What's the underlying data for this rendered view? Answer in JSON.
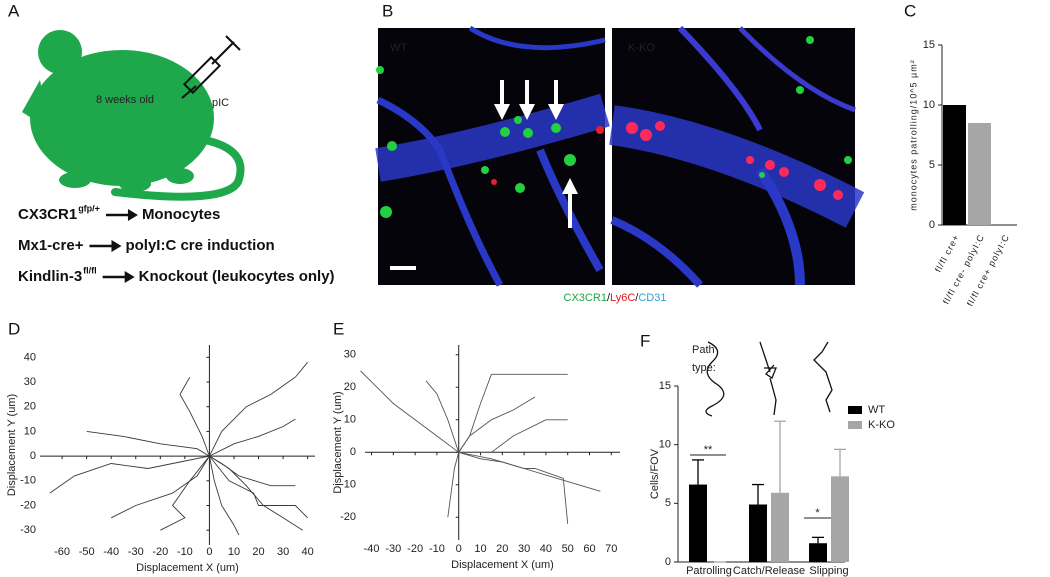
{
  "panel_a": {
    "label": "A",
    "mouse_text": "8 weeks old",
    "injection": "pIC",
    "rows": [
      {
        "gene": "CX3CR1",
        "sup": "gfp/+",
        "effect": "Monocytes"
      },
      {
        "gene": "Mx1-cre+",
        "effect": "polyI:C cre induction"
      },
      {
        "gene": "Kindlin-3",
        "sup": "fl/fl",
        "effect": "Knockout (leukocytes only)"
      }
    ]
  },
  "panel_b": {
    "label": "B",
    "images": [
      "WT",
      "K-KO"
    ],
    "stain": [
      {
        "text": "CX3CR1",
        "color": "#1aa83a"
      },
      {
        "text": "/",
        "color": "#111111"
      },
      {
        "text": "Ly6C",
        "color": "#e8141e"
      },
      {
        "text": "/",
        "color": "#111111"
      },
      {
        "text": "CD31",
        "color": "#29a3d6"
      }
    ]
  },
  "chart_data": [
    {
      "panel": "C",
      "type": "bar",
      "y_label": "monocytes patrolling/10^5 µm²",
      "categories": [
        "fl/fl cre+",
        "fl/fl cre- polyI:C",
        "fl/fl cre+ polyI:C"
      ],
      "values": [
        10,
        8.5,
        0
      ],
      "colors": [
        "#000000",
        "#a6a6a6",
        "#000000"
      ],
      "ylim": [
        0,
        15
      ],
      "yticks": [
        0,
        5,
        10,
        15
      ]
    },
    {
      "panel": "D",
      "type": "trajectory",
      "x_label": "Displacement X (um)",
      "y_label": "Displacement Y (um)",
      "xlim": [
        -69,
        43
      ],
      "ylim": [
        -36,
        45
      ],
      "xticks": [
        -60,
        -50,
        -40,
        -30,
        -20,
        -10,
        0,
        10,
        20,
        30,
        40
      ],
      "yticks": [
        -30,
        -20,
        -10,
        0,
        10,
        20,
        30,
        40
      ],
      "line_color": "#3a3a3a",
      "series": [
        {
          "x": [
            0,
            5,
            15,
            25,
            35,
            40
          ],
          "y": [
            0,
            10,
            20,
            25,
            32,
            38
          ]
        },
        {
          "x": [
            0,
            -10,
            -25,
            -40,
            -55,
            -65
          ],
          "y": [
            0,
            -2,
            -5,
            -3,
            -8,
            -15
          ]
        },
        {
          "x": [
            0,
            8,
            15,
            22,
            30,
            38
          ],
          "y": [
            0,
            -5,
            -12,
            -20,
            -25,
            -30
          ]
        },
        {
          "x": [
            0,
            5,
            12,
            25,
            35
          ],
          "y": [
            0,
            -3,
            -8,
            -12,
            -12
          ]
        },
        {
          "x": [
            0,
            -5,
            -15,
            -30,
            -40
          ],
          "y": [
            0,
            -8,
            -15,
            -20,
            -25
          ]
        },
        {
          "x": [
            0,
            -3,
            -8,
            -12,
            -8
          ],
          "y": [
            0,
            8,
            18,
            25,
            32
          ]
        },
        {
          "x": [
            0,
            10,
            20,
            30,
            35
          ],
          "y": [
            0,
            5,
            8,
            12,
            15
          ]
        },
        {
          "x": [
            0,
            -5,
            -20,
            -35,
            -50
          ],
          "y": [
            0,
            3,
            5,
            8,
            10
          ]
        },
        {
          "x": [
            0,
            2,
            5,
            10,
            12
          ],
          "y": [
            0,
            -10,
            -20,
            -28,
            -32
          ]
        },
        {
          "x": [
            0,
            -8,
            -15,
            -10,
            -20
          ],
          "y": [
            0,
            -10,
            -20,
            -25,
            -30
          ]
        },
        {
          "x": [
            0,
            8,
            18,
            20,
            35,
            40
          ],
          "y": [
            0,
            -10,
            -15,
            -20,
            -20,
            -25
          ]
        }
      ]
    },
    {
      "panel": "E",
      "type": "trajectory",
      "x_label": "Displacement X (um)",
      "y_label": "Displacement Y (um)",
      "xlim": [
        -43,
        74
      ],
      "ylim": [
        -27,
        33
      ],
      "xticks": [
        -40,
        -30,
        -20,
        -10,
        0,
        10,
        20,
        30,
        40,
        50,
        60,
        70
      ],
      "yticks": [
        -20,
        -10,
        0,
        10,
        20,
        30
      ],
      "line_color": "#555555",
      "series": [
        {
          "x": [
            0,
            -10,
            -30,
            -45
          ],
          "y": [
            0,
            5,
            15,
            25
          ]
        },
        {
          "x": [
            0,
            5,
            10,
            15,
            50
          ],
          "y": [
            0,
            5,
            15,
            24,
            24
          ]
        },
        {
          "x": [
            0,
            5,
            15,
            25,
            35
          ],
          "y": [
            0,
            5,
            10,
            13,
            17
          ]
        },
        {
          "x": [
            0,
            15,
            30,
            45,
            65
          ],
          "y": [
            0,
            -2,
            -5,
            -8,
            -12
          ]
        },
        {
          "x": [
            0,
            10,
            20,
            30,
            35,
            48,
            50
          ],
          "y": [
            0,
            -2,
            -3,
            -5,
            -5,
            -8,
            -22
          ]
        },
        {
          "x": [
            0,
            -5,
            -10,
            -15
          ],
          "y": [
            0,
            10,
            18,
            22
          ]
        },
        {
          "x": [
            0,
            15,
            25,
            40,
            50
          ],
          "y": [
            0,
            0,
            5,
            10,
            10
          ]
        },
        {
          "x": [
            0,
            -2,
            -5
          ],
          "y": [
            0,
            -5,
            -20
          ]
        }
      ]
    },
    {
      "panel": "F",
      "type": "bar",
      "path_type_label": [
        "Path",
        "type:"
      ],
      "y_label": "Cells/FOV",
      "categories": [
        "Patrolling",
        "Catch/Release",
        "Slipping"
      ],
      "series": [
        {
          "name": "WT",
          "color": "#000000",
          "values": [
            6.6,
            4.9,
            1.6
          ],
          "errors": [
            2.1,
            1.7,
            0.5
          ]
        },
        {
          "name": "K-KO",
          "color": "#a6a6a6",
          "values": [
            0,
            5.9,
            7.3
          ],
          "errors": [
            0,
            6.1,
            2.3
          ]
        }
      ],
      "significance": [
        "**",
        "*"
      ],
      "ylim": [
        0,
        15
      ],
      "yticks": [
        0,
        5,
        10,
        15
      ]
    }
  ]
}
